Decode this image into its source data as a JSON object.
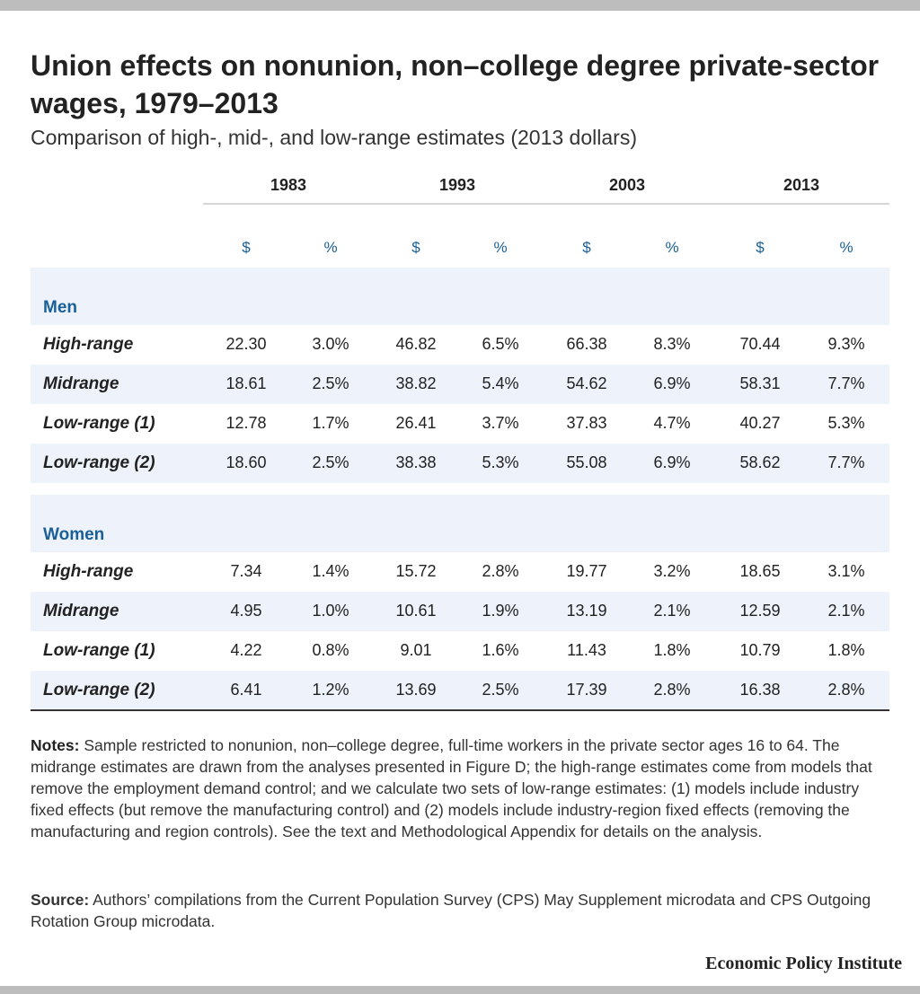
{
  "title": "Union effects on nonunion, non–college degree private-sector wages, 1979–2013",
  "subtitle": "Comparison of high-, mid-, and low-range estimates (2013 dollars)",
  "chart_data": {
    "type": "table",
    "years": [
      "1983",
      "1993",
      "2003",
      "2013"
    ],
    "units": [
      "$",
      "%"
    ],
    "groups": [
      {
        "name": "Men",
        "rows": [
          {
            "label": "High-range",
            "values": [
              "22.30",
              "3.0%",
              "46.82",
              "6.5%",
              "66.38",
              "8.3%",
              "70.44",
              "9.3%"
            ]
          },
          {
            "label": "Midrange",
            "values": [
              "18.61",
              "2.5%",
              "38.82",
              "5.4%",
              "54.62",
              "6.9%",
              "58.31",
              "7.7%"
            ]
          },
          {
            "label": "Low-range (1)",
            "values": [
              "12.78",
              "1.7%",
              "26.41",
              "3.7%",
              "37.83",
              "4.7%",
              "40.27",
              "5.3%"
            ]
          },
          {
            "label": "Low-range (2)",
            "values": [
              "18.60",
              "2.5%",
              "38.38",
              "5.3%",
              "55.08",
              "6.9%",
              "58.62",
              "7.7%"
            ]
          }
        ]
      },
      {
        "name": "Women",
        "rows": [
          {
            "label": "High-range",
            "values": [
              "7.34",
              "1.4%",
              "15.72",
              "2.8%",
              "19.77",
              "3.2%",
              "18.65",
              "3.1%"
            ]
          },
          {
            "label": "Midrange",
            "values": [
              "4.95",
              "1.0%",
              "10.61",
              "1.9%",
              "13.19",
              "2.1%",
              "12.59",
              "2.1%"
            ]
          },
          {
            "label": "Low-range (1)",
            "values": [
              "4.22",
              "0.8%",
              "9.01",
              "1.6%",
              "11.43",
              "1.8%",
              "10.79",
              "1.8%"
            ]
          },
          {
            "label": "Low-range (2)",
            "values": [
              "6.41",
              "1.2%",
              "13.69",
              "2.5%",
              "17.39",
              "2.8%",
              "16.38",
              "2.8%"
            ]
          }
        ]
      }
    ]
  },
  "notes": {
    "label": "Notes:",
    "text": "Sample restricted to nonunion, non–college degree, full-time workers in the private sector ages 16 to 64. The midrange estimates are drawn from the analyses presented in Figure D; the high-range estimates come from models that remove the employment demand control; and we calculate two sets of low-range estimates: (1) models include industry fixed effects (but remove the manufacturing control) and (2) models include industry-region fixed effects (removing the manufacturing and region controls). See the text and Methodological Appendix for details on the analysis."
  },
  "source": {
    "label": "Source:",
    "text": "Authors’ compilations from the Current Population Survey (CPS) May Supplement microdata and CPS Outgoing Rotation Group microdata."
  },
  "brand": "Economic Policy Institute",
  "colors": {
    "accent": "#1a5f96",
    "band": "#edf2fb",
    "text": "#222222",
    "frame": "#bdbdbd"
  }
}
